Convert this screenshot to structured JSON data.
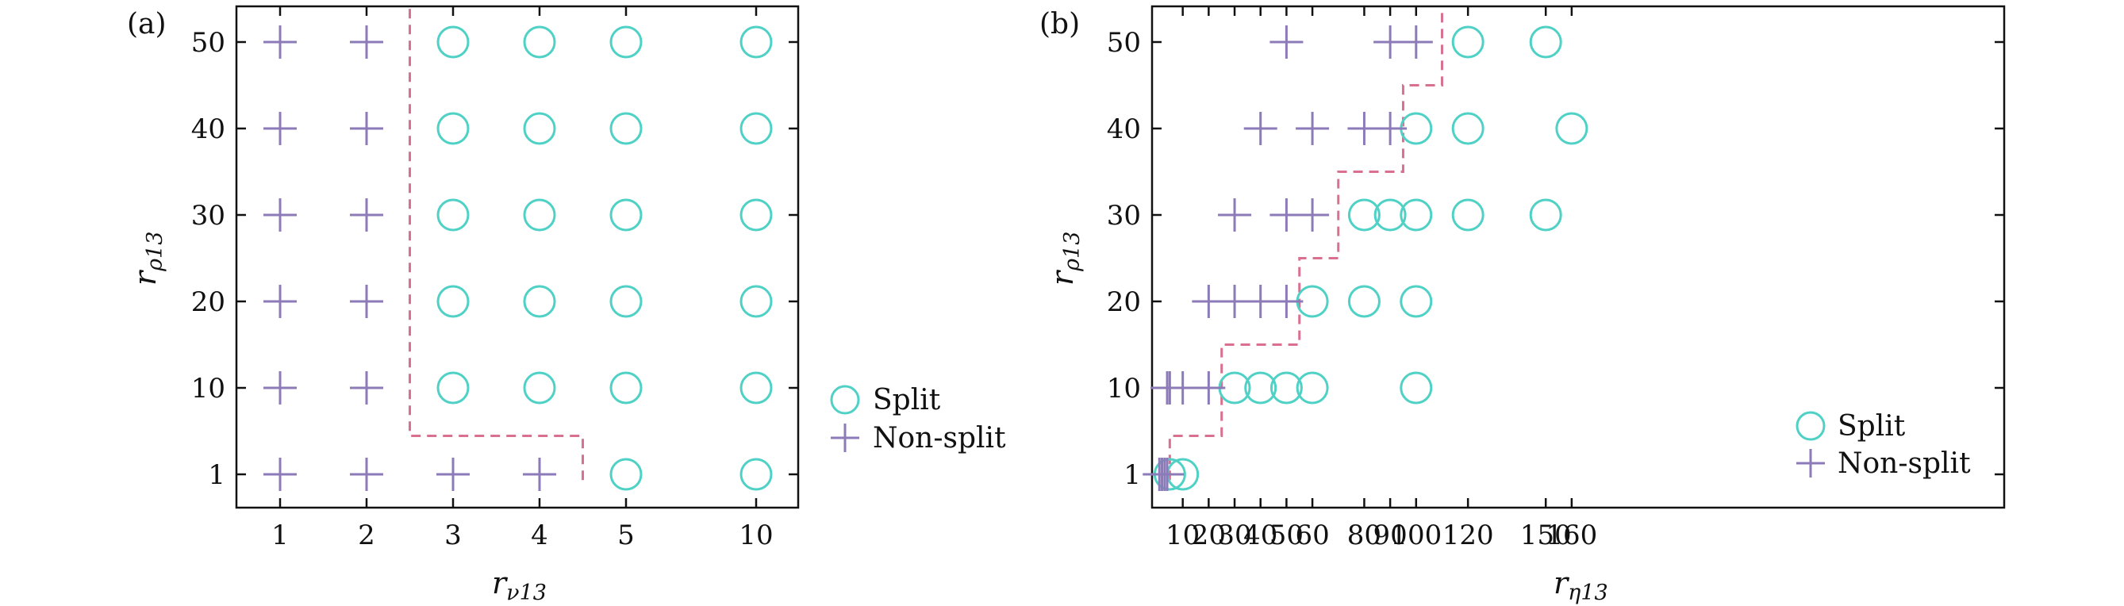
{
  "colors": {
    "split": "#4fd1c5",
    "non_split": "#8c7bb8",
    "boundary": "#d9708f",
    "axis": "#111111"
  },
  "markers": {
    "split": "circle",
    "non_split": "plus"
  },
  "chart_data": [
    {
      "panel_label": "(a)",
      "type": "scatter",
      "xlabel": "r_{ν13}",
      "xlabel_main": "r",
      "xlabel_sub": "ν13",
      "ylabel": "r_{ρ13}",
      "ylabel_main": "r",
      "ylabel_sub": "ρ13",
      "x_categories": [
        "1",
        "2",
        "3",
        "4",
        "5",
        "10"
      ],
      "y_categories": [
        "1",
        "10",
        "20",
        "30",
        "40",
        "50"
      ],
      "legend": {
        "split": "Split",
        "non_split": "Non-split",
        "placement": "outside-right"
      },
      "series": [
        {
          "name": "Split",
          "marker": "circle",
          "points": [
            [
              5,
              1
            ],
            [
              10,
              1
            ],
            [
              3,
              10
            ],
            [
              4,
              10
            ],
            [
              5,
              10
            ],
            [
              10,
              10
            ],
            [
              3,
              20
            ],
            [
              4,
              20
            ],
            [
              5,
              20
            ],
            [
              10,
              20
            ],
            [
              3,
              30
            ],
            [
              4,
              30
            ],
            [
              5,
              30
            ],
            [
              10,
              30
            ],
            [
              3,
              40
            ],
            [
              4,
              40
            ],
            [
              5,
              40
            ],
            [
              10,
              40
            ],
            [
              3,
              50
            ],
            [
              4,
              50
            ],
            [
              5,
              50
            ],
            [
              10,
              50
            ]
          ]
        },
        {
          "name": "Non-split",
          "marker": "plus",
          "points": [
            [
              1,
              1
            ],
            [
              2,
              1
            ],
            [
              3,
              1
            ],
            [
              4,
              1
            ],
            [
              1,
              10
            ],
            [
              2,
              10
            ],
            [
              1,
              20
            ],
            [
              2,
              20
            ],
            [
              1,
              30
            ],
            [
              2,
              30
            ],
            [
              1,
              40
            ],
            [
              2,
              40
            ],
            [
              1,
              50
            ],
            [
              2,
              50
            ]
          ]
        }
      ],
      "boundary": [
        [
          4.5,
          0.4
        ],
        [
          4.5,
          5
        ],
        [
          2.5,
          5
        ],
        [
          2.5,
          54
        ]
      ]
    },
    {
      "panel_label": "(b)",
      "type": "scatter",
      "xlabel": "r_{η13}",
      "xlabel_main": "r",
      "xlabel_sub": "η13",
      "ylabel": "r_{ρ13}",
      "ylabel_main": "r",
      "ylabel_sub": "ρ13",
      "x_ticks": [
        "10",
        "20",
        "30",
        "40",
        "50",
        "60",
        "80",
        "90",
        "100",
        "120",
        "150",
        "160"
      ],
      "y_categories": [
        "1",
        "10",
        "20",
        "30",
        "40",
        "50"
      ],
      "legend": {
        "split": "Split",
        "non_split": "Non-split",
        "placement": "lower-right"
      },
      "series": [
        {
          "name": "Split",
          "marker": "circle",
          "points": [
            [
              5,
              1
            ],
            [
              10,
              1
            ],
            [
              30,
              10
            ],
            [
              40,
              10
            ],
            [
              50,
              10
            ],
            [
              60,
              10
            ],
            [
              100,
              10
            ],
            [
              60,
              20
            ],
            [
              80,
              20
            ],
            [
              100,
              20
            ],
            [
              80,
              30
            ],
            [
              90,
              30
            ],
            [
              100,
              30
            ],
            [
              120,
              30
            ],
            [
              150,
              30
            ],
            [
              100,
              40
            ],
            [
              120,
              40
            ],
            [
              160,
              40
            ],
            [
              120,
              50
            ],
            [
              150,
              50
            ]
          ]
        },
        {
          "name": "Non-split",
          "marker": "plus",
          "points": [
            [
              1,
              1
            ],
            [
              2,
              1
            ],
            [
              3,
              1
            ],
            [
              4,
              1
            ],
            [
              4,
              10
            ],
            [
              5,
              10
            ],
            [
              10,
              10
            ],
            [
              20,
              10
            ],
            [
              20,
              20
            ],
            [
              30,
              20
            ],
            [
              40,
              20
            ],
            [
              50,
              20
            ],
            [
              30,
              30
            ],
            [
              50,
              30
            ],
            [
              60,
              30
            ],
            [
              40,
              40
            ],
            [
              60,
              40
            ],
            [
              80,
              40
            ],
            [
              90,
              40
            ],
            [
              50,
              50
            ],
            [
              90,
              50
            ],
            [
              100,
              50
            ]
          ]
        }
      ],
      "boundary": [
        [
          5,
          0.4
        ],
        [
          5,
          5
        ],
        [
          25,
          5
        ],
        [
          25,
          15
        ],
        [
          55,
          15
        ],
        [
          55,
          25
        ],
        [
          70,
          25
        ],
        [
          70,
          35
        ],
        [
          95,
          35
        ],
        [
          95,
          45
        ],
        [
          110,
          45
        ],
        [
          110,
          54
        ]
      ]
    }
  ]
}
